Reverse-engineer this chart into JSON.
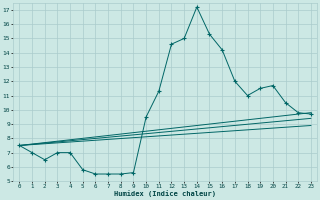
{
  "title": "",
  "xlabel": "Humidex (Indice chaleur)",
  "bg_color": "#cce8e4",
  "grid_color": "#aacccc",
  "line_color": "#006666",
  "xlim": [
    -0.5,
    23.5
  ],
  "ylim": [
    5,
    17.5
  ],
  "xticks": [
    0,
    1,
    2,
    3,
    4,
    5,
    6,
    7,
    8,
    9,
    10,
    11,
    12,
    13,
    14,
    15,
    16,
    17,
    18,
    19,
    20,
    21,
    22,
    23
  ],
  "yticks": [
    5,
    6,
    7,
    8,
    9,
    10,
    11,
    12,
    13,
    14,
    15,
    16,
    17
  ],
  "series1_x": [
    0,
    1,
    2,
    3,
    4,
    5,
    6,
    7,
    8,
    9,
    10,
    11,
    12,
    13,
    14,
    15,
    16,
    17,
    18,
    19,
    20,
    21,
    22,
    23
  ],
  "series1_y": [
    7.5,
    7.0,
    6.5,
    7.0,
    7.0,
    5.8,
    5.5,
    5.5,
    5.5,
    5.6,
    9.5,
    11.3,
    14.6,
    15.0,
    17.2,
    15.3,
    14.2,
    12.0,
    11.0,
    11.5,
    11.7,
    10.5,
    9.8,
    9.7
  ],
  "trend_lines": [
    {
      "x": [
        0,
        23
      ],
      "y": [
        7.5,
        9.8
      ]
    },
    {
      "x": [
        0,
        23
      ],
      "y": [
        7.5,
        9.4
      ]
    },
    {
      "x": [
        0,
        23
      ],
      "y": [
        7.5,
        8.9
      ]
    }
  ]
}
